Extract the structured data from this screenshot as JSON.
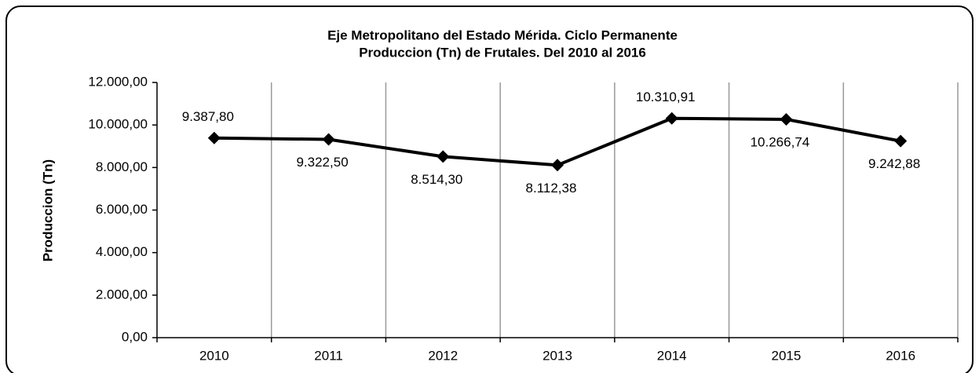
{
  "chart_data": {
    "type": "line",
    "title": "Eje Metropolitano del Estado Mérida. Ciclo Permanente",
    "subtitle": "Produccion (Tn) de Frutales. Del 2010 al 2016",
    "ylabel": "Produccion (Tn)",
    "categories": [
      "2010",
      "2011",
      "2012",
      "2013",
      "2014",
      "2015",
      "2016"
    ],
    "series": [
      {
        "name": "Produccion",
        "color": "#000000",
        "values": [
          9387.8,
          9322.5,
          8514.3,
          8112.38,
          10310.91,
          10266.74,
          9242.88
        ],
        "value_labels": [
          "9.387,80",
          "9.322,50",
          "8.514,30",
          "8.112,38",
          "10.310,91",
          "10.266,74",
          "9.242,88"
        ]
      }
    ],
    "ylim": [
      0,
      12000
    ],
    "yticks": [
      {
        "value": 0,
        "label": "0,00"
      },
      {
        "value": 2000,
        "label": "2.000,00"
      },
      {
        "value": 4000,
        "label": "4.000,00"
      },
      {
        "value": 6000,
        "label": "6.000,00"
      },
      {
        "value": 8000,
        "label": "8.000,00"
      },
      {
        "value": 10000,
        "label": "10.000,00"
      },
      {
        "value": 12000,
        "label": "12.000,00"
      }
    ],
    "grid": "x"
  }
}
